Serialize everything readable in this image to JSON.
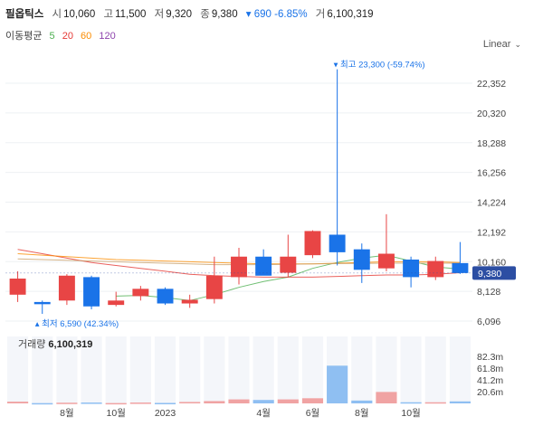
{
  "header": {
    "name": "필옵틱스",
    "open_label": "시",
    "open": "10,060",
    "high_label": "고",
    "high": "11,500",
    "low_label": "저",
    "low": "9,320",
    "close_label": "종",
    "close": "9,380",
    "change": "▾ 690 -6.85%",
    "volume_label": "거",
    "volume": "6,100,319"
  },
  "ma_legend": {
    "title": "이동평균",
    "items": [
      {
        "label": "5",
        "color": "#4caf50"
      },
      {
        "label": "20",
        "color": "#e53935"
      },
      {
        "label": "60",
        "color": "#fb8c00"
      },
      {
        "label": "120",
        "color": "#8e44ad"
      }
    ]
  },
  "scale_mode": "Linear",
  "colors": {
    "up": "#e84545",
    "down": "#1a73e8",
    "last_price_bg": "#2c4ea3"
  },
  "chart_data": {
    "type": "candlestick",
    "price_ticks": [
      "22,352",
      "20,320",
      "18,288",
      "16,256",
      "14,224",
      "12,192",
      "10,160",
      "8,128",
      "6,096"
    ],
    "price_tick_values": [
      22352,
      20320,
      18288,
      16256,
      14224,
      12192,
      10160,
      8128,
      6096
    ],
    "last_price_label": "9,380",
    "last_price": 9380,
    "high_annotation": "▾ 최고 23,300 (-59.74%)",
    "low_annotation": "▴ 최저 6,590 (42.34%)",
    "x_ticks": [
      {
        "label": "8월",
        "index": 2
      },
      {
        "label": "10월",
        "index": 4
      },
      {
        "label": "2023",
        "index": 6
      },
      {
        "label": "4월",
        "index": 10
      },
      {
        "label": "6월",
        "index": 12
      },
      {
        "label": "8월",
        "index": 14
      },
      {
        "label": "10월",
        "index": 16
      }
    ],
    "candles": [
      {
        "o": 7900,
        "h": 9500,
        "l": 7400,
        "c": 9000
      },
      {
        "o": 7400,
        "h": 7500,
        "l": 6590,
        "c": 7250
      },
      {
        "o": 7500,
        "h": 9300,
        "l": 7200,
        "c": 9200
      },
      {
        "o": 9100,
        "h": 9200,
        "l": 6900,
        "c": 7100
      },
      {
        "o": 7200,
        "h": 8100,
        "l": 7100,
        "c": 7500
      },
      {
        "o": 7800,
        "h": 8500,
        "l": 7500,
        "c": 8300
      },
      {
        "o": 8300,
        "h": 8400,
        "l": 7200,
        "c": 7300
      },
      {
        "o": 7300,
        "h": 7900,
        "l": 7000,
        "c": 7550
      },
      {
        "o": 7600,
        "h": 10500,
        "l": 7300,
        "c": 9200
      },
      {
        "o": 9100,
        "h": 11100,
        "l": 8600,
        "c": 10500
      },
      {
        "o": 10500,
        "h": 11000,
        "l": 9300,
        "c": 9200
      },
      {
        "o": 9400,
        "h": 12000,
        "l": 9100,
        "c": 10500
      },
      {
        "o": 10600,
        "h": 12300,
        "l": 10400,
        "c": 12250
      },
      {
        "o": 12000,
        "h": 23300,
        "l": 9900,
        "c": 10800
      },
      {
        "o": 11000,
        "h": 11400,
        "l": 8700,
        "c": 9600
      },
      {
        "o": 9700,
        "h": 13400,
        "l": 9500,
        "c": 10700
      },
      {
        "o": 10300,
        "h": 10500,
        "l": 8400,
        "c": 9100
      },
      {
        "o": 9100,
        "h": 10500,
        "l": 8900,
        "c": 10200
      },
      {
        "o": 10060,
        "h": 11500,
        "l": 9320,
        "c": 9380
      }
    ],
    "ma": [
      {
        "period": "5",
        "values": [
          null,
          null,
          null,
          null,
          7800,
          7850,
          7700,
          7500,
          7900,
          8400,
          8800,
          9100,
          9700,
          10100,
          10400,
          10600,
          10200,
          9800,
          9650
        ]
      },
      {
        "period": "20",
        "values": [
          11000,
          10700,
          10400,
          10100,
          9900,
          9700,
          9500,
          9300,
          9200,
          9150,
          9100,
          9100,
          9100,
          9150,
          9200,
          9250,
          9250,
          9300,
          9400
        ]
      },
      {
        "period": "60",
        "values": [
          10700,
          10600,
          10500,
          10400,
          10300,
          10250,
          10200,
          10150,
          10100,
          10050,
          10000,
          10000,
          10000,
          10050,
          10100,
          10150,
          10150,
          10150,
          10100
        ]
      },
      {
        "period": "120",
        "values": [
          10350,
          10300,
          10250,
          10200,
          10150,
          10100,
          10050,
          10000,
          9950,
          9950,
          9950,
          9980,
          10000,
          10020,
          10040,
          10050,
          10050,
          10050,
          10050
        ]
      }
    ],
    "volume_label": "거래량",
    "volume_value": "6,100,319",
    "volume_ticks": [
      "82.3m",
      "61.8m",
      "41.2m",
      "20.6m"
    ],
    "volume_tick_values": [
      82.3,
      61.8,
      41.2,
      20.6
    ],
    "volumes": [
      3,
      0.5,
      1.2,
      1.5,
      0.6,
      1.5,
      0.8,
      2.5,
      4,
      7,
      6,
      7,
      9,
      66,
      5,
      20,
      2,
      2,
      3.5
    ]
  }
}
